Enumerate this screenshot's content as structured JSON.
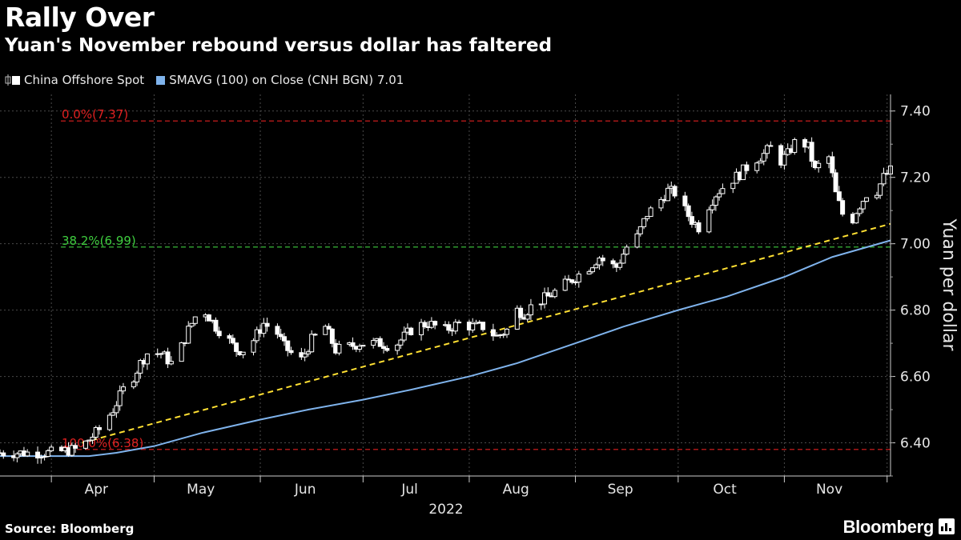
{
  "header": {
    "title": "Rally Over",
    "subtitle": "Yuan's November rebound versus dollar has faltered"
  },
  "legend": {
    "series1": "China Offshore Spot",
    "series2": "SMAVG (100)  on Close (CNH BGN) 7.01"
  },
  "footer": {
    "source": "Source: Bloomberg",
    "brand": "Bloomberg"
  },
  "colors": {
    "background": "#000000",
    "candle": "#ffffff",
    "sma": "#7fb3ec",
    "trend": "#ffe033",
    "fib_red": "#e02020",
    "fib_green": "#3fce3f",
    "grid": "#4a4a4a"
  },
  "chart_data": {
    "type": "line",
    "ylabel": "Yuan per dollar",
    "ylim": [
      6.3,
      7.45
    ],
    "yticks": [
      6.4,
      6.6,
      6.8,
      7.0,
      7.2,
      7.4
    ],
    "ytick_labels": [
      "6.40",
      "6.60",
      "6.80",
      "7.00",
      "7.20",
      "7.40"
    ],
    "x_range": [
      "2022-03-17",
      "2022-12-02"
    ],
    "months": [
      "Apr",
      "May",
      "Jun",
      "Jul",
      "Aug",
      "Sep",
      "Oct",
      "Nov"
    ],
    "year_label": "2022",
    "fib_levels": [
      {
        "label": "0.0%(7.37)",
        "value": 7.37,
        "color": "red"
      },
      {
        "label": "38.2%(6.99)",
        "value": 6.99,
        "color": "green"
      },
      {
        "label": "100.0%(6.38)",
        "value": 6.38,
        "color": "red"
      }
    ],
    "trend_line": {
      "from": [
        "2022-04-10",
        6.4
      ],
      "to": [
        "2022-12-02",
        7.06
      ]
    },
    "close_path": [
      [
        "2022-03-17",
        6.37
      ],
      [
        "2022-04-01",
        6.37
      ],
      [
        "2022-04-08",
        6.38
      ],
      [
        "2022-04-11",
        6.4
      ],
      [
        "2022-04-15",
        6.44
      ],
      [
        "2022-04-19",
        6.5
      ],
      [
        "2022-04-22",
        6.56
      ],
      [
        "2022-04-25",
        6.6
      ],
      [
        "2022-04-27",
        6.64
      ],
      [
        "2022-04-29",
        6.67
      ],
      [
        "2022-05-03",
        6.67
      ],
      [
        "2022-05-06",
        6.64
      ],
      [
        "2022-05-09",
        6.69
      ],
      [
        "2022-05-11",
        6.74
      ],
      [
        "2022-05-13",
        6.78
      ],
      [
        "2022-05-15",
        6.81
      ],
      [
        "2022-05-17",
        6.78
      ],
      [
        "2022-05-19",
        6.75
      ],
      [
        "2022-05-22",
        6.72
      ],
      [
        "2022-05-25",
        6.68
      ],
      [
        "2022-05-27",
        6.68
      ],
      [
        "2022-05-30",
        6.71
      ],
      [
        "2022-06-02",
        6.76
      ],
      [
        "2022-06-06",
        6.73
      ],
      [
        "2022-06-08",
        6.69
      ],
      [
        "2022-06-10",
        6.67
      ],
      [
        "2022-06-13",
        6.65
      ],
      [
        "2022-06-16",
        6.71
      ],
      [
        "2022-06-20",
        6.75
      ],
      [
        "2022-06-23",
        6.68
      ],
      [
        "2022-06-27",
        6.69
      ],
      [
        "2022-06-30",
        6.7
      ],
      [
        "2022-07-06",
        6.7
      ],
      [
        "2022-07-10",
        6.69
      ],
      [
        "2022-07-13",
        6.72
      ],
      [
        "2022-07-16",
        6.75
      ],
      [
        "2022-07-20",
        6.76
      ],
      [
        "2022-07-25",
        6.74
      ],
      [
        "2022-07-29",
        6.76
      ],
      [
        "2022-08-02",
        6.75
      ],
      [
        "2022-08-05",
        6.75
      ],
      [
        "2022-08-09",
        6.72
      ],
      [
        "2022-08-12",
        6.74
      ],
      [
        "2022-08-15",
        6.8
      ],
      [
        "2022-08-17",
        6.79
      ],
      [
        "2022-08-20",
        6.82
      ],
      [
        "2022-08-24",
        6.84
      ],
      [
        "2022-08-28",
        6.87
      ],
      [
        "2022-09-01",
        6.9
      ],
      [
        "2022-09-05",
        6.93
      ],
      [
        "2022-09-08",
        6.96
      ],
      [
        "2022-09-10",
        6.94
      ],
      [
        "2022-09-13",
        6.93
      ],
      [
        "2022-09-16",
        6.99
      ],
      [
        "2022-09-19",
        7.02
      ],
      [
        "2022-09-22",
        7.09
      ],
      [
        "2022-09-25",
        7.12
      ],
      [
        "2022-09-28",
        7.16
      ],
      [
        "2022-10-01",
        7.15
      ],
      [
        "2022-10-03",
        7.1
      ],
      [
        "2022-10-05",
        7.07
      ],
      [
        "2022-10-07",
        7.05
      ],
      [
        "2022-10-09",
        7.1
      ],
      [
        "2022-10-12",
        7.15
      ],
      [
        "2022-10-15",
        7.18
      ],
      [
        "2022-10-19",
        7.21
      ],
      [
        "2022-10-23",
        7.25
      ],
      [
        "2022-10-26",
        7.27
      ],
      [
        "2022-10-29",
        7.3
      ],
      [
        "2022-10-31",
        7.25
      ],
      [
        "2022-11-02",
        7.27
      ],
      [
        "2022-11-05",
        7.32
      ],
      [
        "2022-11-08",
        7.29
      ],
      [
        "2022-11-10",
        7.22
      ],
      [
        "2022-11-12",
        7.25
      ],
      [
        "2022-11-14",
        7.26
      ],
      [
        "2022-11-16",
        7.15
      ],
      [
        "2022-11-18",
        7.09
      ],
      [
        "2022-11-20",
        7.05
      ],
      [
        "2022-11-22",
        7.1
      ],
      [
        "2022-11-25",
        7.15
      ],
      [
        "2022-11-28",
        7.16
      ],
      [
        "2022-11-30",
        7.2
      ],
      [
        "2022-12-02",
        7.22
      ]
    ],
    "sma": [
      [
        "2022-03-17",
        6.36
      ],
      [
        "2022-04-01",
        6.36
      ],
      [
        "2022-04-12",
        6.36
      ],
      [
        "2022-04-20",
        6.37
      ],
      [
        "2022-05-01",
        6.39
      ],
      [
        "2022-05-15",
        6.43
      ],
      [
        "2022-06-01",
        6.47
      ],
      [
        "2022-06-15",
        6.5
      ],
      [
        "2022-07-01",
        6.53
      ],
      [
        "2022-07-15",
        6.56
      ],
      [
        "2022-08-01",
        6.6
      ],
      [
        "2022-08-15",
        6.64
      ],
      [
        "2022-09-01",
        6.7
      ],
      [
        "2022-09-15",
        6.75
      ],
      [
        "2022-10-01",
        6.8
      ],
      [
        "2022-10-15",
        6.84
      ],
      [
        "2022-11-01",
        6.9
      ],
      [
        "2022-11-15",
        6.96
      ],
      [
        "2022-12-02",
        7.01
      ]
    ]
  }
}
